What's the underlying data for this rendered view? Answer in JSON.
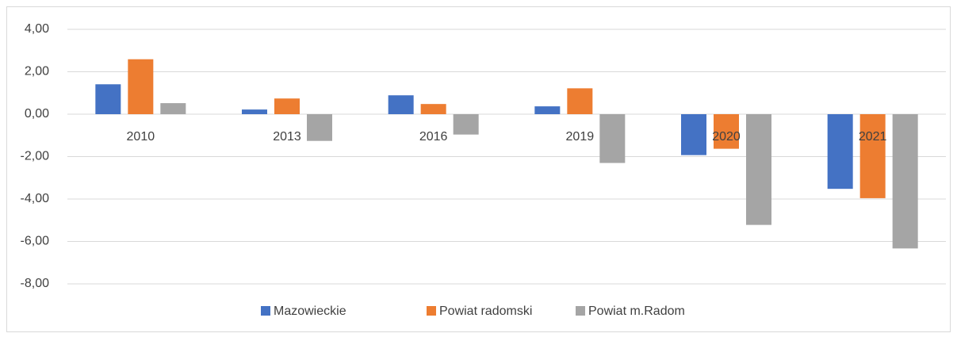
{
  "chart_data": {
    "type": "bar",
    "categories": [
      "2010",
      "2013",
      "2016",
      "2019",
      "2020",
      "2021"
    ],
    "series": [
      {
        "name": "Mazowieckie",
        "color": "#4472c4",
        "values": [
          1.41,
          0.22,
          0.89,
          0.37,
          -1.93,
          -3.52
        ]
      },
      {
        "name": "Powiat radomski",
        "color": "#ed7d31",
        "values": [
          2.59,
          0.74,
          0.48,
          1.22,
          -1.63,
          -3.96
        ]
      },
      {
        "name": "Powiat m.Radom",
        "color": "#a5a5a5",
        "values": [
          0.52,
          -1.26,
          -0.96,
          -2.3,
          -5.22,
          -6.33
        ]
      }
    ],
    "ylim": [
      -8,
      4
    ],
    "yticks": [
      {
        "value": -8,
        "label": "-8,00"
      },
      {
        "value": -6,
        "label": "-6,00"
      },
      {
        "value": -4,
        "label": "-4,00"
      },
      {
        "value": -2,
        "label": "-2,00"
      },
      {
        "value": 0,
        "label": "0,00"
      },
      {
        "value": 2,
        "label": "2,00"
      },
      {
        "value": 4,
        "label": "4,00"
      }
    ],
    "grid": true,
    "legend": "bottom"
  }
}
